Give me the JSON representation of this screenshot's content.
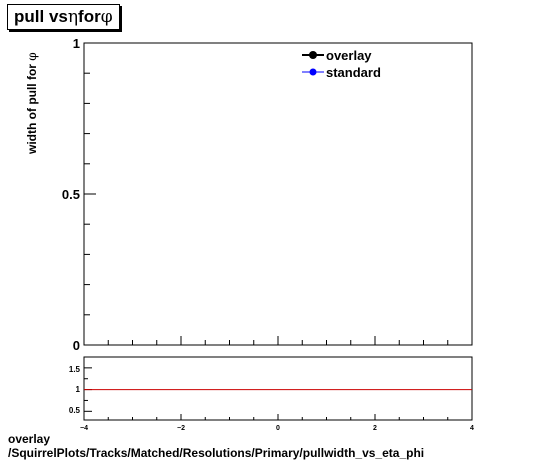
{
  "title": {
    "prefix": "pull vs ",
    "eta": "η",
    "middle": " for ",
    "phi": "φ"
  },
  "ylabel": {
    "text": "width of pull for ",
    "symbol": "φ"
  },
  "footer": {
    "line1": "overlay",
    "line2": "/SquirrelPlots/Tracks/Matched/Resolutions/Primary/pullwidth_vs_eta_phi"
  },
  "chart_data": [
    {
      "type": "line",
      "title": "pull vs η for φ",
      "ylabel": "width of pull for φ",
      "xlim": [
        -4,
        4
      ],
      "ylim": [
        0,
        1
      ],
      "yticks": [
        "0",
        "0.5",
        "1"
      ],
      "series": [
        {
          "name": "overlay",
          "color": "#000000",
          "marker": "circle",
          "values": []
        },
        {
          "name": "standard",
          "color": "#0000ff",
          "marker": "circle",
          "values": []
        }
      ],
      "legend": "top-right"
    },
    {
      "type": "line",
      "xlim": [
        -4,
        4
      ],
      "ylim": [
        0.3,
        1.75
      ],
      "xticks": [
        "−4",
        "−2",
        "0",
        "2",
        "4"
      ],
      "yticks": [
        "0.5",
        "1",
        "1.5"
      ],
      "reference_line": {
        "y": 1,
        "color": "#cc0000"
      },
      "grid": false
    }
  ]
}
